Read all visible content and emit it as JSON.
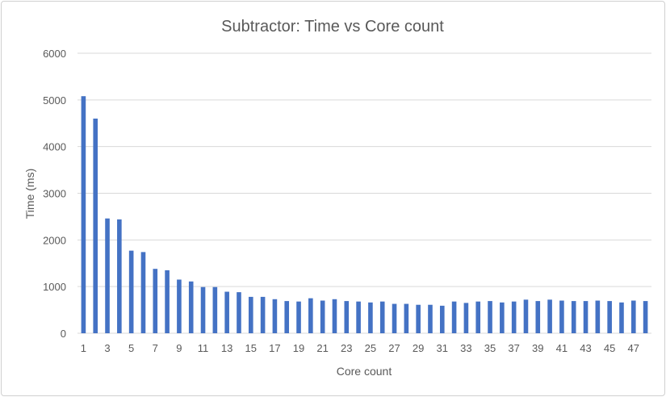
{
  "chart_data": {
    "type": "bar",
    "title": "Subtractor: Time vs Core count",
    "xlabel": "Core count",
    "ylabel": "Time (ms)",
    "ylim": [
      0,
      6000
    ],
    "yticks": [
      0,
      1000,
      2000,
      3000,
      4000,
      5000,
      6000
    ],
    "grid": true,
    "color": "#4472C4",
    "categories": [
      1,
      2,
      3,
      4,
      5,
      6,
      7,
      8,
      9,
      10,
      11,
      12,
      13,
      14,
      15,
      16,
      17,
      18,
      19,
      20,
      21,
      22,
      23,
      24,
      25,
      26,
      27,
      28,
      29,
      30,
      31,
      32,
      33,
      34,
      35,
      36,
      37,
      38,
      39,
      40,
      41,
      42,
      43,
      44,
      45,
      46,
      47,
      48
    ],
    "xtick_labels": [
      1,
      3,
      5,
      7,
      9,
      11,
      13,
      15,
      17,
      19,
      21,
      23,
      25,
      27,
      29,
      31,
      33,
      35,
      37,
      39,
      41,
      43,
      45,
      47
    ],
    "values": [
      5080,
      4600,
      2460,
      2440,
      1770,
      1740,
      1380,
      1350,
      1150,
      1110,
      990,
      990,
      890,
      880,
      780,
      780,
      730,
      690,
      680,
      750,
      700,
      730,
      690,
      680,
      660,
      680,
      630,
      630,
      610,
      610,
      590,
      680,
      650,
      680,
      690,
      660,
      680,
      720,
      690,
      720,
      700,
      690,
      690,
      700,
      690,
      660,
      700,
      690
    ]
  }
}
